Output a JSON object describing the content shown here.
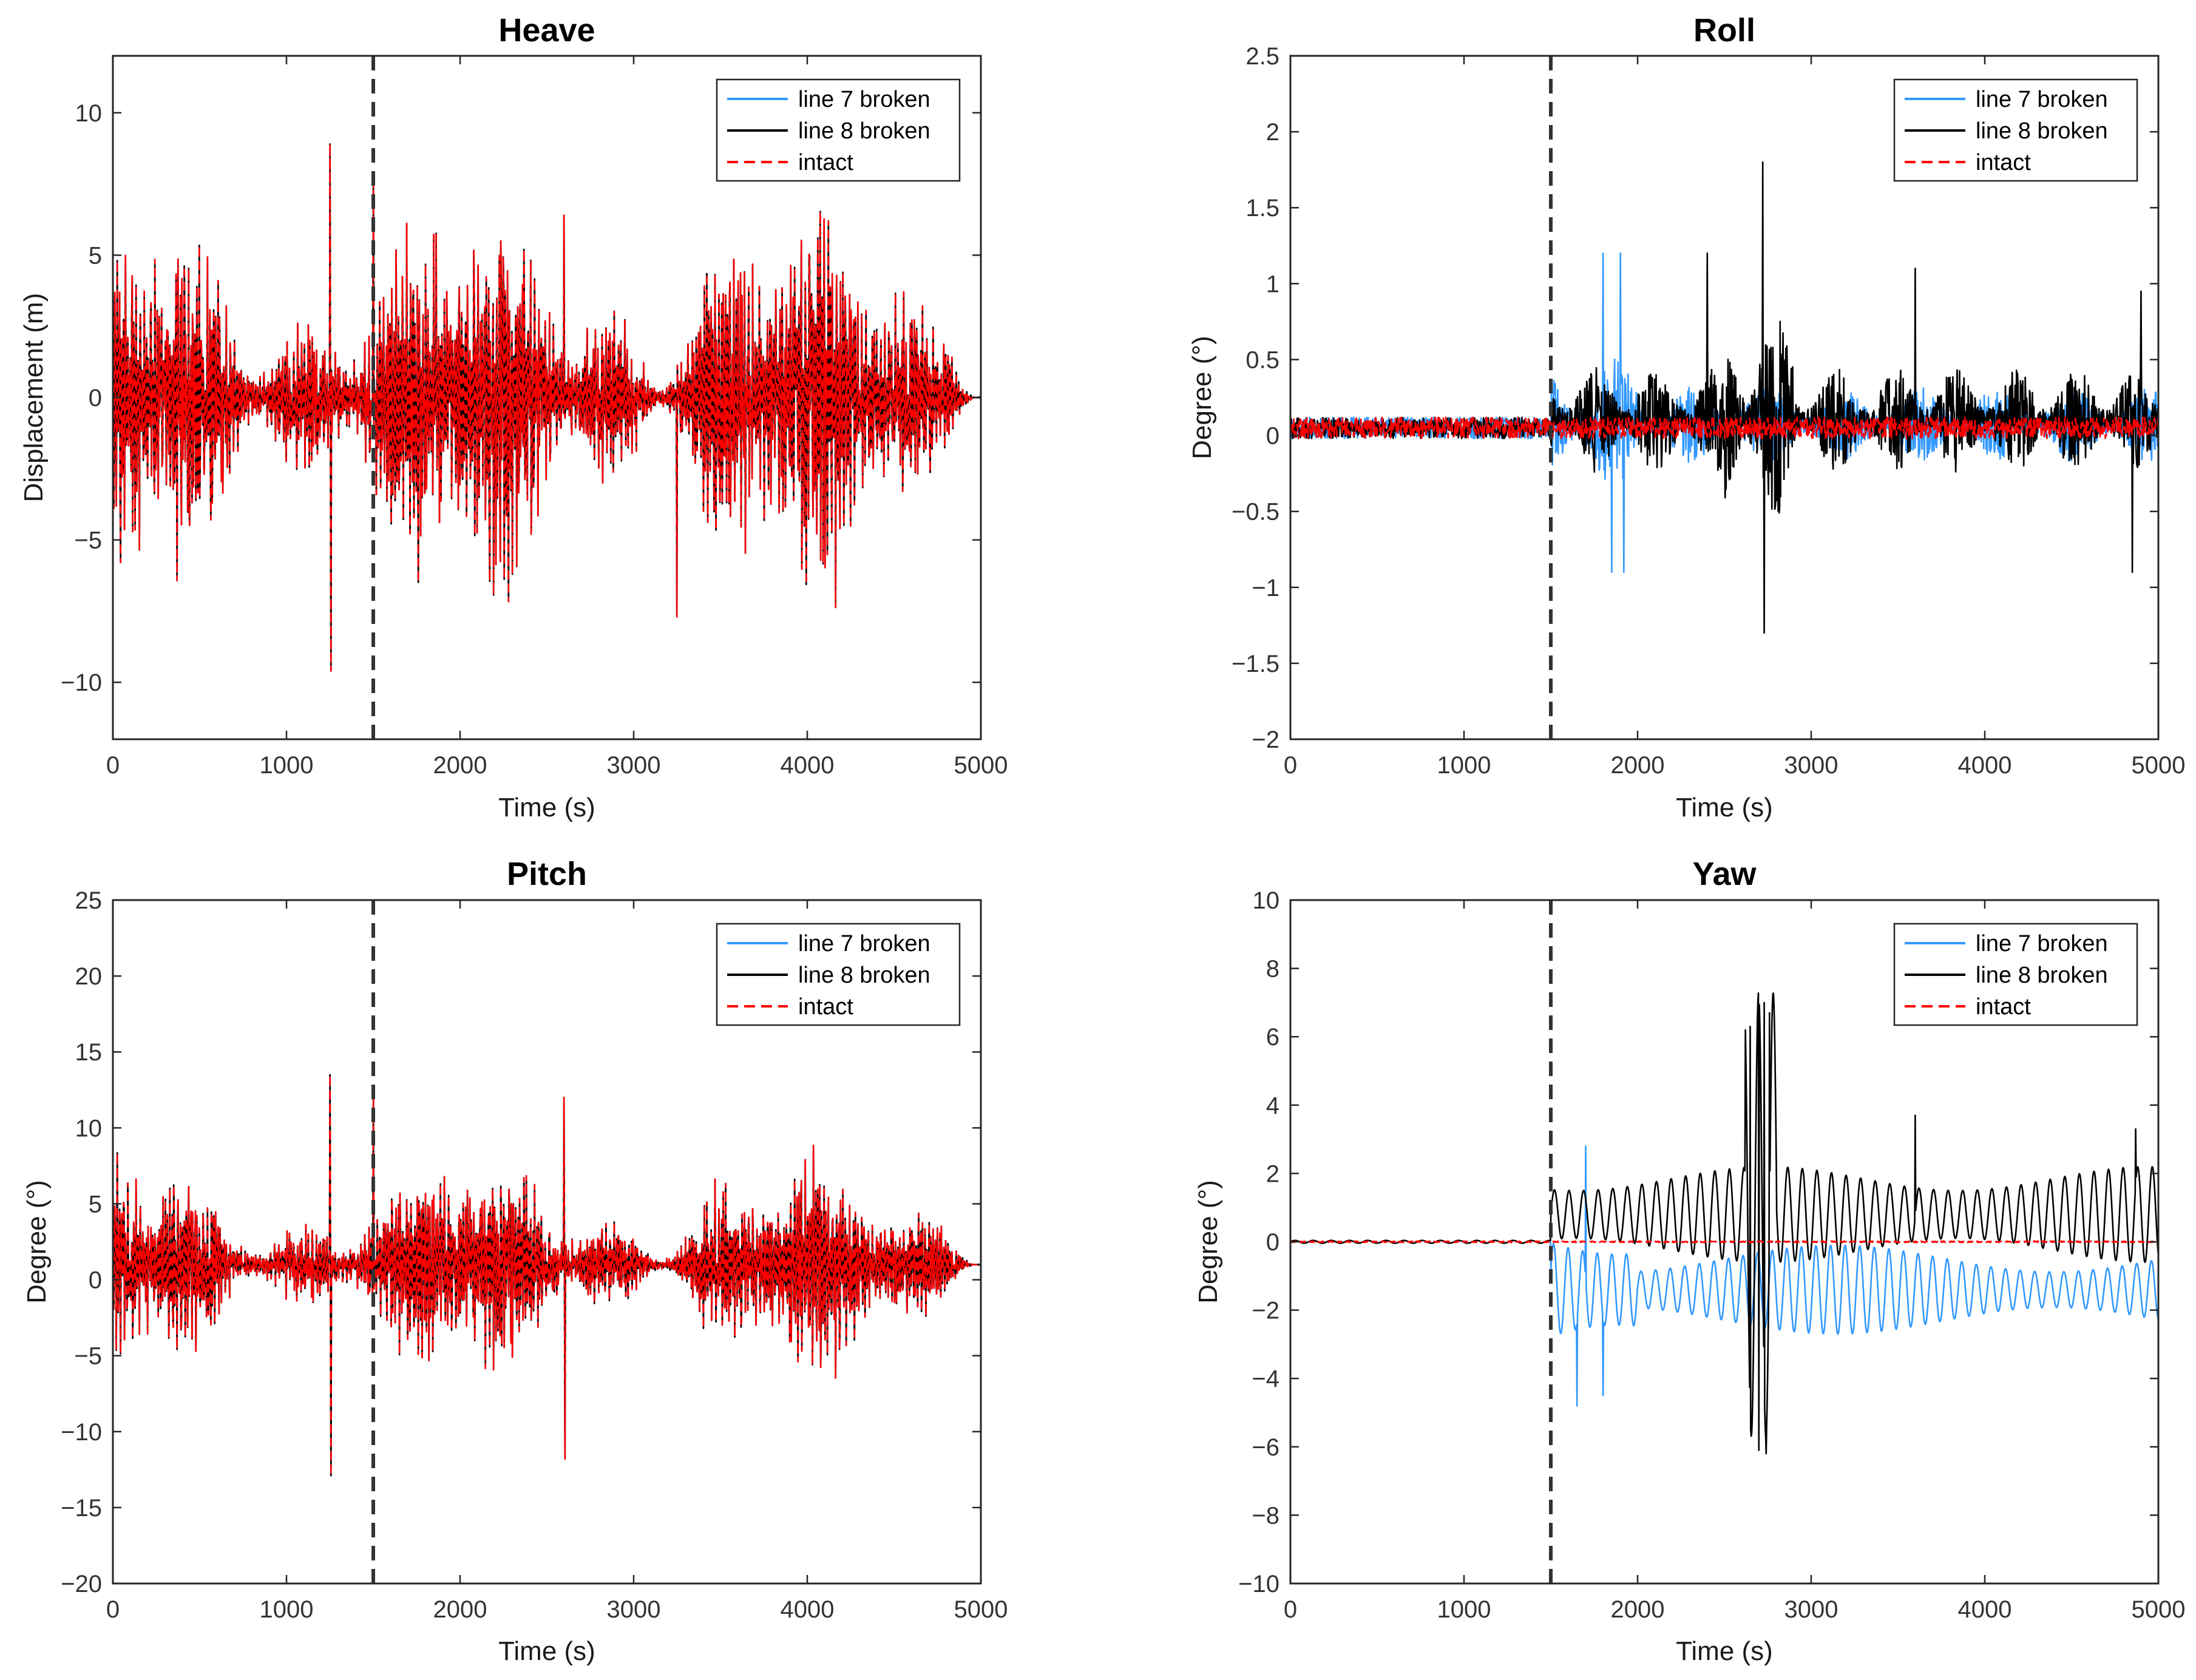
{
  "figure": {
    "break_time": 1500,
    "colors": {
      "line7": "#3399ff",
      "line8": "#000000",
      "intact": "#ff0000",
      "break_marker": "#333333"
    }
  },
  "chart_data": [
    {
      "type": "line",
      "title": "Heave",
      "xlabel": "Time (s)",
      "ylabel": "Displacement (m)",
      "xlim": [
        0,
        5000
      ],
      "ylim": [
        -12,
        12
      ],
      "xticks": [
        0,
        1000,
        2000,
        3000,
        4000,
        5000
      ],
      "yticks": [
        -10,
        -5,
        0,
        5,
        10
      ],
      "legend": {
        "placement": "top-right",
        "entries": [
          "line 7 broken",
          "line 8 broken",
          "intact"
        ]
      },
      "series": [
        {
          "name": "line 7 broken",
          "color": "#3399ff",
          "style": "solid",
          "description": "wave-frequency oscillation, overlaps intact",
          "x_range": [
            0,
            5000
          ],
          "amplitude_approx": 6,
          "offset_approx": 0,
          "peaks": [
            [
              1250,
              8.9
            ],
            [
              1255,
              -9.6
            ],
            [
              1500,
              7.8
            ],
            [
              2600,
              6.4
            ],
            [
              3250,
              -7.7
            ]
          ]
        },
        {
          "name": "line 8 broken",
          "color": "#000000",
          "style": "solid",
          "description": "wave-frequency oscillation, overlaps intact",
          "x_range": [
            0,
            5000
          ],
          "amplitude_approx": 6,
          "offset_approx": 0,
          "peaks": [
            [
              1250,
              8.9
            ],
            [
              1255,
              -9.6
            ],
            [
              1500,
              7.8
            ],
            [
              2600,
              6.4
            ],
            [
              3250,
              -7.7
            ]
          ]
        },
        {
          "name": "intact",
          "color": "#ff0000",
          "style": "dashed",
          "description": "wave-frequency oscillation",
          "x_range": [
            0,
            5000
          ],
          "amplitude_approx": 6,
          "offset_approx": 0,
          "peaks": [
            [
              1250,
              8.9
            ],
            [
              1255,
              -9.6
            ],
            [
              1500,
              7.8
            ],
            [
              2600,
              6.4
            ],
            [
              3250,
              -7.7
            ]
          ]
        }
      ]
    },
    {
      "type": "line",
      "title": "Roll",
      "xlabel": "Time (s)",
      "ylabel": "Degree (°)",
      "xlim": [
        0,
        5000
      ],
      "ylim": [
        -2,
        2.5
      ],
      "xticks": [
        0,
        1000,
        2000,
        3000,
        4000,
        5000
      ],
      "yticks": [
        -2,
        -1.5,
        -1,
        -0.5,
        0,
        0.5,
        1,
        1.5,
        2,
        2.5
      ],
      "legend": {
        "placement": "top-right",
        "entries": [
          "line 7 broken",
          "line 8 broken",
          "intact"
        ]
      },
      "series": [
        {
          "name": "line 7 broken",
          "color": "#3399ff",
          "style": "solid",
          "description": "small before 1500 s, up to about 1.2 near 1800-2000 s",
          "x_range": [
            0,
            5000
          ],
          "amplitude_approx": 0.3,
          "offset_approx": 0.05,
          "peaks": [
            [
              1800,
              1.2
            ],
            [
              1900,
              1.2
            ],
            [
              1850,
              -0.9
            ],
            [
              1920,
              -0.9
            ]
          ]
        },
        {
          "name": "line 8 broken",
          "color": "#000000",
          "style": "solid",
          "description": "large fluctuations after 1500 s",
          "x_range": [
            0,
            5000
          ],
          "amplitude_approx": 0.3,
          "offset_approx": 0.1,
          "peaks": [
            [
              2720,
              1.8
            ],
            [
              2730,
              -1.3
            ],
            [
              2400,
              1.2
            ],
            [
              3600,
              1.1
            ],
            [
              4900,
              0.95
            ],
            [
              4850,
              -0.9
            ]
          ]
        },
        {
          "name": "intact",
          "color": "#ff0000",
          "style": "dashed",
          "description": "small noise around 0.05",
          "x_range": [
            0,
            5000
          ],
          "amplitude_approx": 0.06,
          "offset_approx": 0.05,
          "peaks": []
        }
      ]
    },
    {
      "type": "line",
      "title": "Pitch",
      "xlabel": "Time (s)",
      "ylabel": "Degree (°)",
      "xlim": [
        0,
        5000
      ],
      "ylim": [
        -20,
        25
      ],
      "xticks": [
        0,
        1000,
        2000,
        3000,
        4000,
        5000
      ],
      "yticks": [
        -20,
        -15,
        -10,
        -5,
        0,
        5,
        10,
        15,
        20,
        25
      ],
      "legend": {
        "placement": "top-right",
        "entries": [
          "line 7 broken",
          "line 8 broken",
          "intact"
        ]
      },
      "series": [
        {
          "name": "line 7 broken",
          "color": "#3399ff",
          "style": "solid",
          "description": "wave-frequency oscillation, overlaps intact",
          "x_range": [
            0,
            5000
          ],
          "amplitude_approx": 6,
          "offset_approx": 1,
          "peaks": [
            [
              1250,
              13.5
            ],
            [
              1255,
              -12.9
            ],
            [
              1500,
              12.4
            ],
            [
              2600,
              12
            ],
            [
              2605,
              -11.8
            ]
          ]
        },
        {
          "name": "line 8 broken",
          "color": "#000000",
          "style": "solid",
          "description": "wave-frequency oscillation, overlaps intact",
          "x_range": [
            0,
            5000
          ],
          "amplitude_approx": 6,
          "offset_approx": 1,
          "peaks": [
            [
              1250,
              13.5
            ],
            [
              1255,
              -12.9
            ],
            [
              1500,
              12.4
            ],
            [
              2600,
              12
            ],
            [
              2605,
              -11.8
            ]
          ]
        },
        {
          "name": "intact",
          "color": "#ff0000",
          "style": "dashed",
          "description": "wave-frequency oscillation",
          "x_range": [
            0,
            5000
          ],
          "amplitude_approx": 6,
          "offset_approx": 1,
          "peaks": [
            [
              1250,
              13.5
            ],
            [
              1255,
              -12.9
            ],
            [
              1500,
              12.4
            ],
            [
              2600,
              12
            ],
            [
              2605,
              -11.8
            ]
          ]
        }
      ]
    },
    {
      "type": "line",
      "title": "Yaw",
      "xlabel": "Time (s)",
      "ylabel": "Degree (°)",
      "xlim": [
        0,
        5000
      ],
      "ylim": [
        -10,
        10
      ],
      "xticks": [
        0,
        1000,
        2000,
        3000,
        4000,
        5000
      ],
      "yticks": [
        -10,
        -8,
        -6,
        -4,
        -2,
        0,
        2,
        4,
        6,
        8,
        10
      ],
      "legend": {
        "placement": "top-right",
        "entries": [
          "line 7 broken",
          "line 8 broken",
          "intact"
        ]
      },
      "series": [
        {
          "name": "line 7 broken",
          "color": "#3399ff",
          "style": "solid",
          "description": "low-frequency oscillation, mean near -1.5 after 1500 s",
          "x_range": [
            0,
            5000
          ],
          "amplitude_approx": 1.6,
          "offset_approx": -1.4,
          "peaks": [
            [
              1700,
              2.8
            ],
            [
              1650,
              -4.8
            ],
            [
              1800,
              -4.5
            ]
          ]
        },
        {
          "name": "line 8 broken",
          "color": "#000000",
          "style": "solid",
          "description": "low-frequency oscillation, mean near 0.8 after 1500 s, large burst near 2700 s",
          "x_range": [
            0,
            5000
          ],
          "amplitude_approx": 1.5,
          "offset_approx": 0.8,
          "peaks": [
            [
              2730,
              7
            ],
            [
              2760,
              6.7
            ],
            [
              2650,
              6.3
            ],
            [
              2700,
              -6.1
            ],
            [
              2740,
              -6.2
            ],
            [
              3600,
              3.7
            ],
            [
              4870,
              3.3
            ]
          ]
        },
        {
          "name": "intact",
          "color": "#ff0000",
          "style": "dashed",
          "description": "near zero",
          "x_range": [
            0,
            5000
          ],
          "amplitude_approx": 0.02,
          "offset_approx": 0,
          "peaks": []
        }
      ]
    }
  ]
}
